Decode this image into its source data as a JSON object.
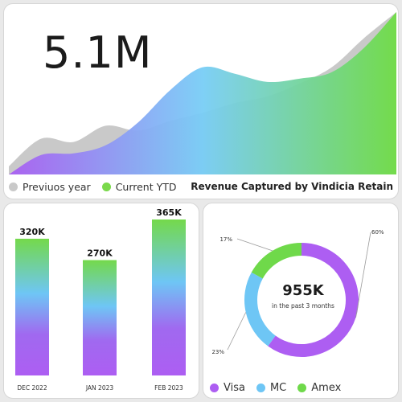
{
  "colors": {
    "previous": "#c9c9c9",
    "current": "#7ad94b",
    "visa": "#ad5ef2",
    "mc": "#6ec6f5",
    "amex": "#6fd94a"
  },
  "revenue_panel": {
    "big_number": "5.1M",
    "title": "Revenue Captured by Vindicia Retain",
    "legend": [
      "Previuos year",
      "Current YTD"
    ]
  },
  "donut_panel": {
    "center_value": "955K",
    "center_label": "in the past 3 months"
  },
  "chart_data": [
    {
      "type": "area",
      "title": "Revenue Captured by Vindicia Retain",
      "series": [
        {
          "name": "Previuos year",
          "values": [
            5,
            22,
            20,
            30,
            27,
            33,
            38,
            44,
            48,
            56,
            66,
            84,
            100
          ]
        },
        {
          "name": "Current YTD",
          "values": [
            0,
            12,
            13,
            18,
            32,
            52,
            66,
            62,
            57,
            59,
            63,
            78,
            100
          ]
        }
      ],
      "ylim": [
        0,
        100
      ]
    },
    {
      "type": "bar",
      "categories": [
        "DEC 2022",
        "JAN 2023",
        "FEB 2023"
      ],
      "values": [
        320,
        270,
        365
      ],
      "labels": [
        "320K",
        "270K",
        "365K"
      ],
      "ylim": [
        0,
        365
      ]
    },
    {
      "type": "pie",
      "categories": [
        "Visa",
        "MC",
        "Amex"
      ],
      "values": [
        60,
        23,
        17
      ],
      "labels": [
        "60%",
        "23%",
        "17%"
      ]
    }
  ]
}
